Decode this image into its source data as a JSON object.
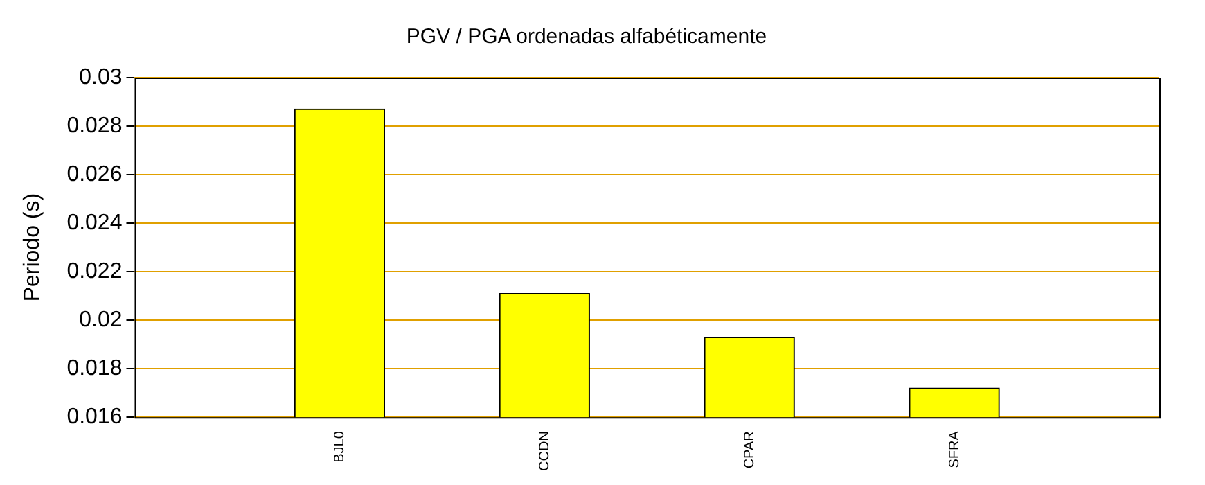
{
  "chart_data": {
    "type": "bar",
    "title": "PGV / PGA ordenadas alfabéticamente",
    "ylabel": "Periodo (s)",
    "categories": [
      null,
      "BJL0",
      "CCDN",
      "CPAR",
      "SFRA",
      null
    ],
    "values": [
      null,
      0.0287,
      0.0211,
      0.0193,
      0.0172,
      null
    ],
    "color": "#ffff00",
    "ylim": [
      0.016,
      0.03
    ],
    "yticks": [
      0.016,
      0.018,
      0.02,
      0.022,
      0.024,
      0.026,
      0.028,
      0.03
    ],
    "grid": "y",
    "legend": false
  }
}
